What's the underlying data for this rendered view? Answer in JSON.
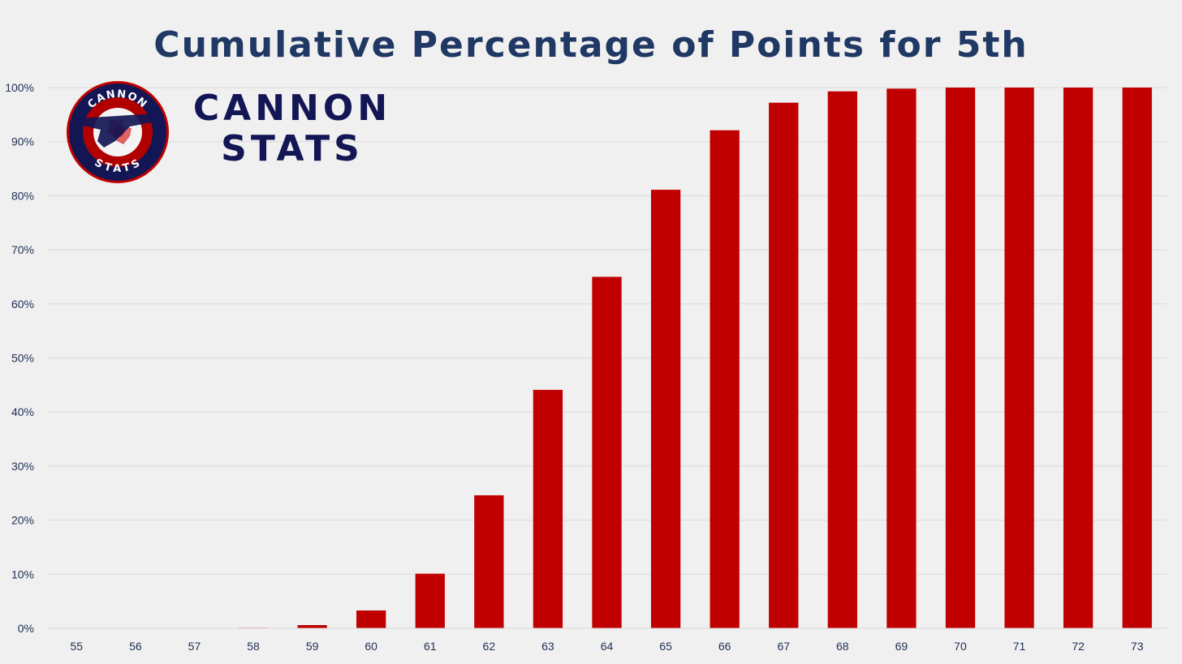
{
  "chart_data": {
    "type": "bar",
    "title": "Cumulative Percentage of Points for 5th",
    "xlabel": "",
    "ylabel": "",
    "categories": [
      "55",
      "56",
      "57",
      "58",
      "59",
      "60",
      "61",
      "62",
      "63",
      "64",
      "65",
      "66",
      "67",
      "68",
      "69",
      "70",
      "71",
      "72",
      "73"
    ],
    "values": [
      0,
      0,
      0,
      0.1,
      0.6,
      3.3,
      10.1,
      24.6,
      44.1,
      65.0,
      81.1,
      92.1,
      97.2,
      99.3,
      99.8,
      100,
      100,
      100,
      100
    ],
    "ylim": [
      0,
      100
    ],
    "yticks": [
      "0%",
      "10%",
      "20%",
      "30%",
      "40%",
      "50%",
      "60%",
      "70%",
      "80%",
      "90%",
      "100%"
    ],
    "grid": true,
    "bar_color": "#c00000"
  },
  "logo": {
    "ring_top_text": "CANNON",
    "ring_bottom_text": "STATS",
    "wordmark_line1": "CANNON",
    "wordmark_line2": "STATS",
    "navy": "#121654",
    "red": "#c00000"
  }
}
